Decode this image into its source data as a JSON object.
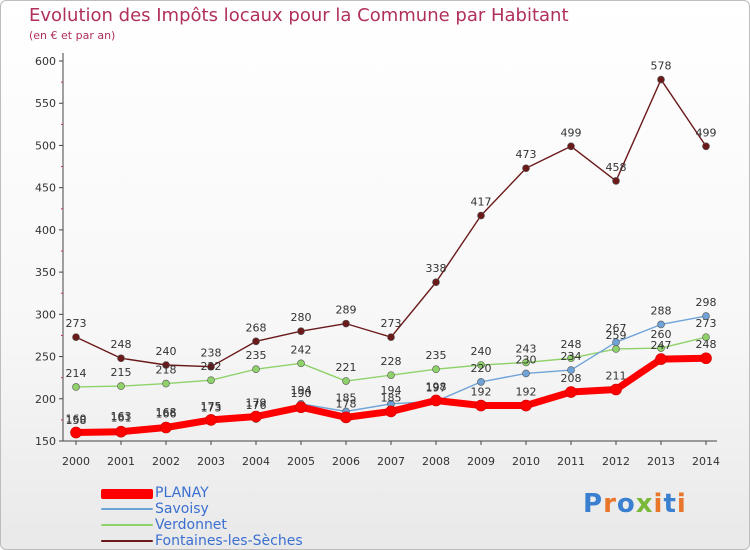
{
  "header": {
    "title": "Evolution des Impôts locaux pour la Commune par Habitant",
    "subtitle": "(en € et par an)"
  },
  "chart_data": {
    "type": "line",
    "x": [
      "2000",
      "2001",
      "2002",
      "2003",
      "2004",
      "2005",
      "2006",
      "2007",
      "2008",
      "2009",
      "2010",
      "2011",
      "2012",
      "2013",
      "2014"
    ],
    "ylim": [
      150,
      600
    ],
    "yticks": [
      150,
      200,
      250,
      300,
      350,
      400,
      450,
      500,
      550,
      600
    ],
    "grid": false,
    "legend_position": "bottom-left",
    "series": [
      {
        "name": "Fontaines-les-Sèches",
        "color": "#6b1a1a",
        "values": [
          273,
          248,
          240,
          238,
          268,
          280,
          289,
          273,
          338,
          417,
          473,
          499,
          458,
          578,
          499
        ]
      },
      {
        "name": "Verdonnet",
        "color": "#8fd26a",
        "values": [
          214,
          215,
          218,
          222,
          235,
          242,
          221,
          228,
          235,
          240,
          243,
          248,
          259,
          260,
          273
        ]
      },
      {
        "name": "Savoisy",
        "color": "#6fa3d8",
        "values": [
          158,
          163,
          168,
          173,
          176,
          194,
          185,
          194,
          197,
          220,
          230,
          234,
          267,
          288,
          298
        ]
      },
      {
        "name": "PLANAY",
        "color": "#ff0000",
        "values": [
          160,
          161,
          166,
          175,
          179,
          190,
          178,
          185,
          198,
          192,
          192,
          208,
          211,
          247,
          248
        ]
      }
    ]
  },
  "legend": [
    "PLANAY",
    "Savoisy",
    "Verdonnet",
    "Fontaines-les-Sèches"
  ],
  "logo": {
    "text": "Proxiti"
  }
}
